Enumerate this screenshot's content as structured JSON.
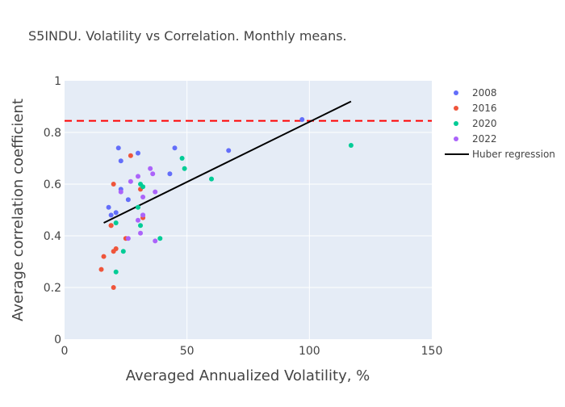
{
  "chart_data": {
    "type": "scatter",
    "title": "S5INDU. Volatility vs Correlation. Monthly means.",
    "xlabel": "Averaged Annualized Volatility, %",
    "ylabel": "Average correlation coefficient",
    "xlim": [
      0,
      150
    ],
    "ylim": [
      0,
      1
    ],
    "x_ticks": [
      "0",
      "50",
      "100",
      "150"
    ],
    "y_ticks": [
      "0",
      "0.2",
      "0.4",
      "0.6",
      "0.8",
      "1"
    ],
    "grid": true,
    "legend_position": "right",
    "series": [
      {
        "name": "2008",
        "color": "#636efa",
        "points": [
          [
            18,
            0.51
          ],
          [
            19,
            0.48
          ],
          [
            21,
            0.49
          ],
          [
            22,
            0.74
          ],
          [
            23,
            0.69
          ],
          [
            23,
            0.58
          ],
          [
            26,
            0.54
          ],
          [
            30,
            0.72
          ],
          [
            32,
            0.48
          ],
          [
            43,
            0.64
          ],
          [
            45,
            0.74
          ],
          [
            67,
            0.73
          ],
          [
            97,
            0.85
          ]
        ]
      },
      {
        "name": "2016",
        "color": "#ef553b",
        "points": [
          [
            15,
            0.27
          ],
          [
            16,
            0.32
          ],
          [
            19,
            0.44
          ],
          [
            19,
            0.44
          ],
          [
            20,
            0.2
          ],
          [
            20,
            0.6
          ],
          [
            20,
            0.34
          ],
          [
            21,
            0.35
          ],
          [
            25,
            0.39
          ],
          [
            27,
            0.71
          ],
          [
            31,
            0.58
          ],
          [
            32,
            0.47
          ]
        ]
      },
      {
        "name": "2020",
        "color": "#00cc96",
        "points": [
          [
            21,
            0.26
          ],
          [
            21,
            0.45
          ],
          [
            24,
            0.34
          ],
          [
            30,
            0.51
          ],
          [
            31,
            0.6
          ],
          [
            31,
            0.44
          ],
          [
            32,
            0.59
          ],
          [
            39,
            0.39
          ],
          [
            48,
            0.7
          ],
          [
            49,
            0.66
          ],
          [
            60,
            0.62
          ],
          [
            117,
            0.75
          ]
        ]
      },
      {
        "name": "2022",
        "color": "#ab63fa",
        "points": [
          [
            23,
            0.57
          ],
          [
            26,
            0.39
          ],
          [
            27,
            0.61
          ],
          [
            30,
            0.46
          ],
          [
            30,
            0.63
          ],
          [
            31,
            0.41
          ],
          [
            32,
            0.55
          ],
          [
            32,
            0.48
          ],
          [
            35,
            0.66
          ],
          [
            36,
            0.64
          ],
          [
            37,
            0.38
          ],
          [
            37,
            0.57
          ]
        ]
      }
    ],
    "regression": {
      "name": "Huber regression",
      "color": "#000000",
      "points": [
        [
          16,
          0.45
        ],
        [
          117,
          0.92
        ]
      ]
    },
    "threshold": {
      "y": 0.845,
      "color": "#ff0000",
      "style": "dashed"
    }
  }
}
